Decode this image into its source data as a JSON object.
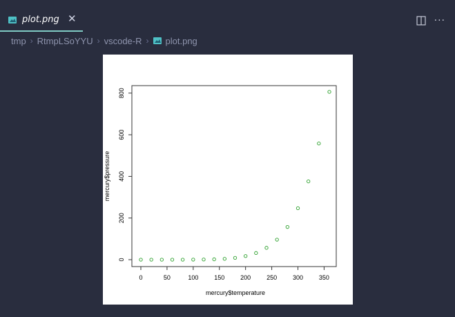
{
  "tab": {
    "label": "plot.png",
    "close_glyph": "✕"
  },
  "actions": {
    "split_icon": "split-editor-icon",
    "more_glyph": "···"
  },
  "breadcrumb": {
    "items": [
      "tmp",
      "RtmpLSoYYU",
      "vscode-R",
      "plot.png"
    ]
  },
  "colors": {
    "editor_bg": "#292d3e",
    "accent": "#80cbc4",
    "point_color": "#2ca02c"
  },
  "chart_data": {
    "type": "scatter",
    "xlabel": "mercury$temperature",
    "ylabel": "mercury$pressure",
    "xlim": [
      0,
      360
    ],
    "ylim": [
      0,
      806
    ],
    "xticks": [
      0,
      50,
      100,
      150,
      200,
      250,
      300,
      350
    ],
    "yticks": [
      0,
      200,
      400,
      600,
      800
    ],
    "x": [
      0,
      20,
      40,
      60,
      80,
      100,
      120,
      140,
      160,
      180,
      200,
      220,
      240,
      260,
      280,
      300,
      320,
      340,
      360
    ],
    "y": [
      0.0002,
      0.0012,
      0.006,
      0.03,
      0.09,
      0.27,
      0.75,
      1.85,
      4.2,
      8.8,
      17.3,
      32.1,
      57,
      96,
      157,
      247,
      376,
      558,
      806
    ]
  }
}
